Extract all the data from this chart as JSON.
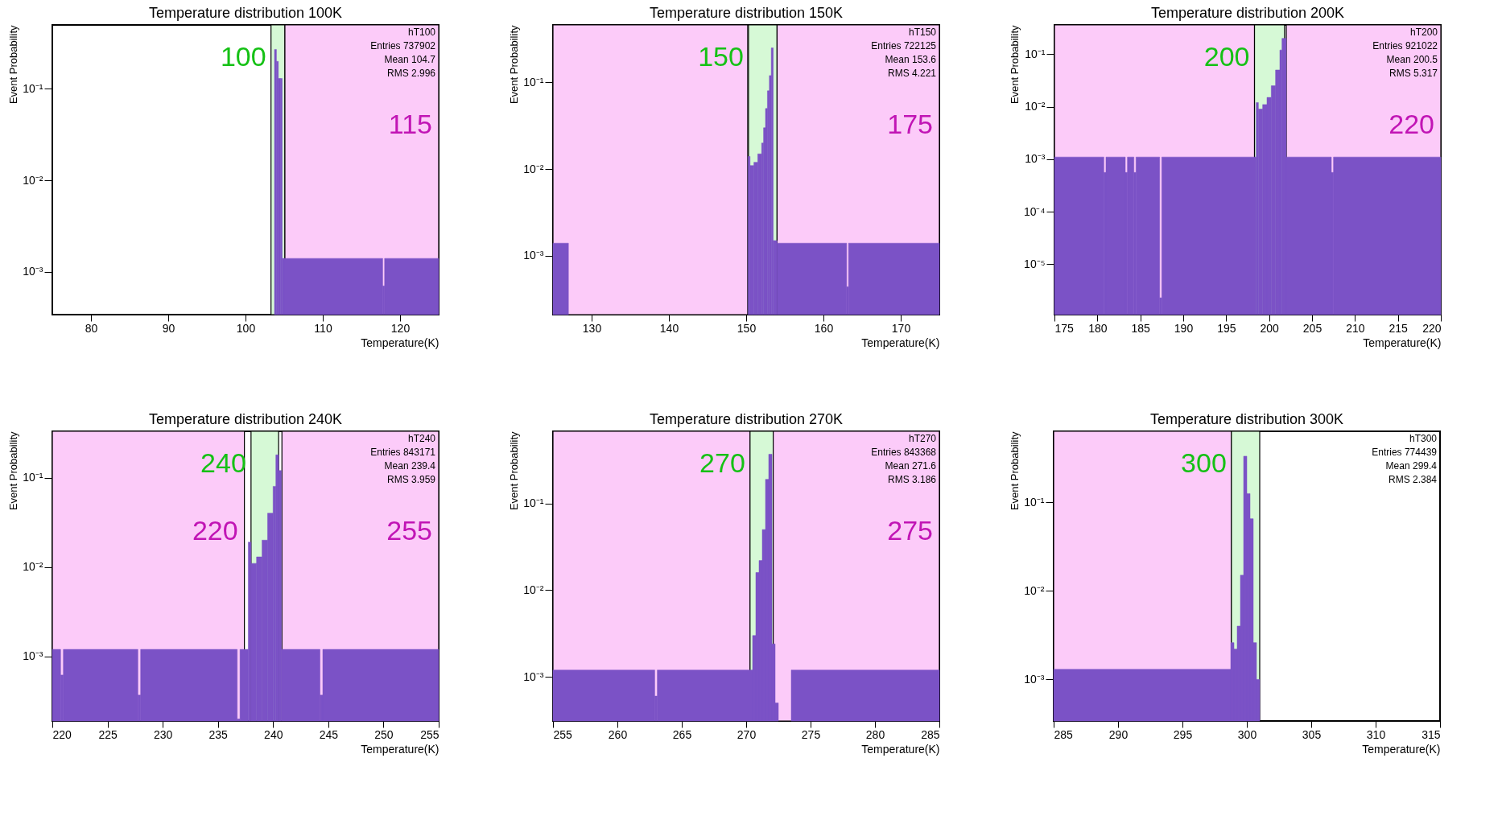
{
  "chart_data": [
    {
      "type": "histogram",
      "title": "Temperature distribution 100K",
      "xlabel": "Temperature(K)",
      "ylabel": "Event Probability",
      "color": "#7b52c6",
      "log": true,
      "grid": false,
      "bins": [
        103.75,
        104.0,
        104.25,
        104.5,
        104.75,
        105.0,
        117.75,
        118.0,
        125
      ],
      "values": [
        0.27,
        0.2,
        0.13,
        0.13,
        0.0014,
        0.0014,
        0.0007,
        0.0014
      ],
      "xlim": [
        75,
        125
      ],
      "xticks": [
        80,
        90,
        100,
        110,
        120
      ],
      "ylim": [
        0.00034,
        0.5
      ],
      "yticks": [
        {
          "value": 0.001,
          "label": "10⁻³"
        },
        {
          "value": 0.01,
          "label": "10⁻²"
        },
        {
          "value": 0.1,
          "label": "10⁻¹"
        }
      ],
      "bands": [
        {
          "axis": "x",
          "from": 103.3,
          "to": 105.1,
          "label": "100",
          "color": "#d6f9d6"
        },
        {
          "axis": "x",
          "from": 105.1,
          "to": 125,
          "label": "115",
          "color": "#fccbf9"
        }
      ],
      "annotations": [
        "hT100\nEntries 737902\nMean 104.7\nRMS 2.996"
      ]
    },
    {
      "type": "histogram",
      "title": "Temperature distribution 150K",
      "xlabel": "Temperature(K)",
      "ylabel": "Event Probability",
      "color": "#7b52c6",
      "log": true,
      "grid": false,
      "bins": [
        125,
        127,
        150.25,
        150.5,
        151,
        151.5,
        152,
        152.25,
        152.5,
        152.75,
        153,
        153.25,
        153.5,
        154,
        163,
        163.25,
        175
      ],
      "values": [
        0.0014,
        null,
        0.014,
        0.011,
        0.012,
        0.015,
        0.02,
        0.03,
        0.05,
        0.08,
        0.12,
        0.25,
        0.0015,
        0.0014,
        0.00044,
        0.0014
      ],
      "xlim": [
        125,
        175
      ],
      "xticks": [
        130,
        140,
        150,
        160,
        170
      ],
      "ylim": [
        0.00021,
        0.46
      ],
      "yticks": [
        {
          "value": 0.001,
          "label": "10⁻³"
        },
        {
          "value": 0.01,
          "label": "10⁻²"
        },
        {
          "value": 0.1,
          "label": "10⁻¹"
        }
      ],
      "bands": [
        {
          "axis": "x",
          "from": 125,
          "to": 150.2,
          "label": null,
          "color": "#fccbf9"
        },
        {
          "axis": "x",
          "from": 150.3,
          "to": 154,
          "label": "150",
          "color": "#d6f9d6"
        },
        {
          "axis": "x",
          "from": 154,
          "to": 175,
          "label": "175",
          "color": "#fccbf9"
        }
      ],
      "annotations": [
        "hT150\nEntries 722125\nMean 153.6\nRMS 4.221"
      ]
    },
    {
      "type": "histogram",
      "title": "Temperature distribution 200K",
      "xlabel": "Temperature(K)",
      "ylabel": "Event Probability",
      "color": "#7b52c6",
      "log": true,
      "grid": false,
      "bins": [
        175,
        180.75,
        181,
        183.25,
        183.5,
        184.25,
        184.5,
        187.25,
        187.5,
        198.5,
        198.75,
        199.25,
        199.75,
        200.25,
        200.75,
        201.25,
        201.5,
        202,
        207.25,
        207.5,
        220
      ],
      "values": [
        0.0011,
        0.00056,
        0.0011,
        0.00056,
        0.0011,
        0.00056,
        0.0011,
        2.3e-06,
        0.0011,
        0.012,
        0.009,
        0.011,
        0.015,
        0.025,
        0.05,
        0.12,
        0.2,
        0.0011,
        0.00056,
        0.0011
      ],
      "xlim": [
        175,
        220
      ],
      "xticks": [
        175,
        180,
        185,
        190,
        195,
        200,
        205,
        210,
        215,
        220
      ],
      "ylim": [
        1.1e-06,
        0.36
      ],
      "yticks": [
        {
          "value": 1e-05,
          "label": "10⁻⁵"
        },
        {
          "value": 0.0001,
          "label": "10⁻⁴"
        },
        {
          "value": 0.001,
          "label": "10⁻³"
        },
        {
          "value": 0.01,
          "label": "10⁻²"
        },
        {
          "value": 0.1,
          "label": "10⁻¹"
        }
      ],
      "bands": [
        {
          "axis": "x",
          "from": 175,
          "to": 198.3,
          "label": null,
          "color": "#fccbf9"
        },
        {
          "axis": "x",
          "from": 198.3,
          "to": 201.8,
          "label": "200",
          "color": "#d6f9d6"
        },
        {
          "axis": "x",
          "from": 202,
          "to": 220,
          "label": "220",
          "color": "#fccbf9"
        }
      ],
      "annotations": [
        "hT200\nEntries 921022\nMean 200.5\nRMS 5.317"
      ]
    },
    {
      "type": "histogram",
      "title": "Temperature distribution 240K",
      "xlabel": "Temperature(K)",
      "ylabel": "Event Probability",
      "color": "#7b52c6",
      "log": true,
      "grid": false,
      "bins": [
        220,
        220.75,
        221,
        227.75,
        228,
        236.75,
        237,
        237.75,
        238,
        238.5,
        239,
        239.5,
        240,
        240.25,
        240.5,
        240.75,
        244.25,
        244.5,
        255
      ],
      "values": [
        0.0012,
        0.00062,
        0.0012,
        0.00037,
        0.0012,
        0.0002,
        0.0012,
        0.019,
        0.011,
        0.013,
        0.02,
        0.04,
        0.08,
        0.18,
        0.12,
        0.0012,
        0.00037,
        0.0012
      ],
      "xlim": [
        220,
        255
      ],
      "xticks": [
        220,
        225,
        230,
        235,
        240,
        245,
        250,
        255
      ],
      "ylim": [
        0.00019,
        0.33
      ],
      "yticks": [
        {
          "value": 0.001,
          "label": "10⁻³"
        },
        {
          "value": 0.01,
          "label": "10⁻²"
        },
        {
          "value": 0.1,
          "label": "10⁻¹"
        }
      ],
      "bands": [
        {
          "axis": "x",
          "from": 220,
          "to": 237.4,
          "label": "220",
          "color": "#fccbf9"
        },
        {
          "axis": "x",
          "from": 238,
          "to": 240.5,
          "label": "240",
          "color": "#d6f9d6"
        },
        {
          "axis": "x",
          "from": 240.8,
          "to": 255,
          "label": "255",
          "color": "#fccbf9"
        }
      ],
      "annotations": [
        "hT240\nEntries 843171\nMean 239.4\nRMS 3.959"
      ]
    },
    {
      "type": "histogram",
      "title": "Temperature distribution 270K",
      "xlabel": "Temperature(K)",
      "ylabel": "Event Probability",
      "color": "#7b52c6",
      "log": true,
      "grid": false,
      "bins": [
        255,
        262.9,
        263.1,
        270.5,
        270.75,
        271,
        271.25,
        271.5,
        271.75,
        272,
        272.25,
        272.5,
        273.5,
        285
      ],
      "values": [
        0.0012,
        0.0006,
        0.0012,
        0.003,
        0.016,
        0.022,
        0.05,
        0.19,
        0.37,
        0.0024,
        0.0005,
        null,
        0.0012
      ],
      "xlim": [
        255,
        285
      ],
      "xticks": [
        255,
        260,
        265,
        270,
        275,
        280,
        285
      ],
      "ylim": [
        0.00031,
        0.68
      ],
      "yticks": [
        {
          "value": 0.001,
          "label": "10⁻³"
        },
        {
          "value": 0.01,
          "label": "10⁻²"
        },
        {
          "value": 0.1,
          "label": "10⁻¹"
        }
      ],
      "bands": [
        {
          "axis": "x",
          "from": 255,
          "to": 270.3,
          "label": null,
          "color": "#fccbf9"
        },
        {
          "axis": "x",
          "from": 270.3,
          "to": 272.1,
          "label": "270",
          "color": "#d6f9d6"
        },
        {
          "axis": "x",
          "from": 272.1,
          "to": 285,
          "label": "275",
          "color": "#fccbf9"
        }
      ],
      "annotations": [
        "hT270\nEntries 843368\nMean 271.6\nRMS 3.186"
      ]
    },
    {
      "type": "histogram",
      "title": "Temperature distribution 300K",
      "xlabel": "Temperature(K)",
      "ylabel": "Event Probability",
      "color": "#7b52c6",
      "log": true,
      "grid": false,
      "bins": [
        285,
        298.75,
        299,
        299.25,
        299.5,
        299.75,
        300,
        300.25,
        300.5,
        300.75,
        301
      ],
      "values": [
        0.0013,
        0.0026,
        0.0022,
        0.004,
        0.015,
        0.33,
        0.125,
        0.065,
        0.0026,
        0.001
      ],
      "xlim": [
        285,
        315
      ],
      "xticks": [
        285,
        290,
        295,
        300,
        305,
        310,
        315
      ],
      "ylim": [
        0.00034,
        0.63
      ],
      "yticks": [
        {
          "value": 0.001,
          "label": "10⁻³"
        },
        {
          "value": 0.01,
          "label": "10⁻²"
        },
        {
          "value": 0.1,
          "label": "10⁻¹"
        }
      ],
      "bands": [
        {
          "axis": "x",
          "from": 285,
          "to": 298.8,
          "label": null,
          "color": "#fccbf9"
        },
        {
          "axis": "x",
          "from": 298.8,
          "to": 301,
          "label": "300",
          "color": "#d6f9d6"
        }
      ],
      "annotations": [
        "hT300\nEntries 774439\nMean 299.4\nRMS 2.384"
      ]
    }
  ]
}
